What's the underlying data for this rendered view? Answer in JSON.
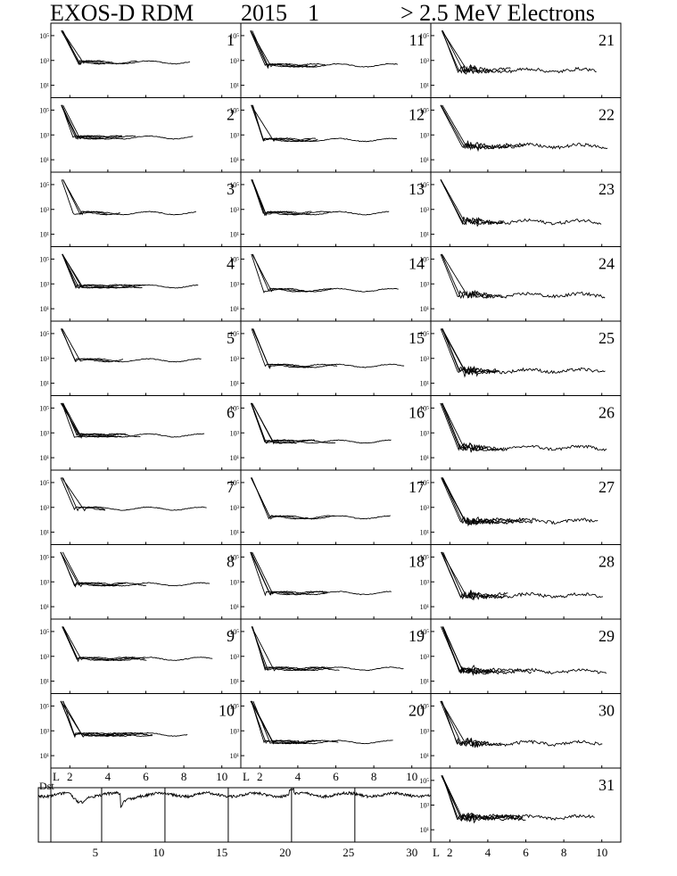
{
  "header": {
    "instrument": "EXOS-D RDM",
    "year": "2015",
    "month": "1",
    "channel": "> 2.5  MeV Electrons"
  },
  "chart_data": {
    "type": "line",
    "title": "EXOS-D RDM 2015 1 > 2.5 MeV Electrons",
    "panel_count": 31,
    "days": [
      1,
      2,
      3,
      4,
      5,
      6,
      7,
      8,
      9,
      10,
      11,
      12,
      13,
      14,
      15,
      16,
      17,
      18,
      19,
      20,
      21,
      22,
      23,
      24,
      25,
      26,
      27,
      28,
      29,
      30,
      31
    ],
    "x_axis": {
      "label": "L",
      "ticks": [
        2,
        4,
        6,
        8,
        10
      ],
      "range": [
        1,
        11
      ]
    },
    "y_axis": {
      "scale": "log",
      "tick_labels": [
        "10⁵",
        "10³",
        "10¹"
      ],
      "ticks": [
        5,
        3,
        1
      ],
      "range_log10": [
        0,
        6
      ]
    },
    "dst_panel": {
      "label": "Dst",
      "x_ticks": [
        5,
        10,
        15,
        20,
        25,
        30
      ],
      "day_boundaries": [
        5.5,
        10.5,
        15.5,
        20.5,
        25.5
      ]
    },
    "plateau_log10": {
      "1": 2.85,
      "2": 2.8,
      "3": 2.7,
      "4": 2.8,
      "5": 2.85,
      "6": 2.8,
      "7": 2.9,
      "8": 2.8,
      "9": 2.8,
      "10": 2.7,
      "11": 2.6,
      "12": 2.6,
      "13": 2.7,
      "14": 2.5,
      "15": 2.4,
      "16": 2.3,
      "17": 2.2,
      "18": 2.1,
      "19": 2.0,
      "20": 2.1,
      "21": 2.2,
      "22": 2.1,
      "23": 2.0,
      "24": 2.1,
      "25": 2.0,
      "26": 1.8,
      "27": 1.9,
      "28": 1.9,
      "29": 1.8,
      "30": 2.0,
      "31": 2.0
    },
    "peak_log10": 5.4
  }
}
